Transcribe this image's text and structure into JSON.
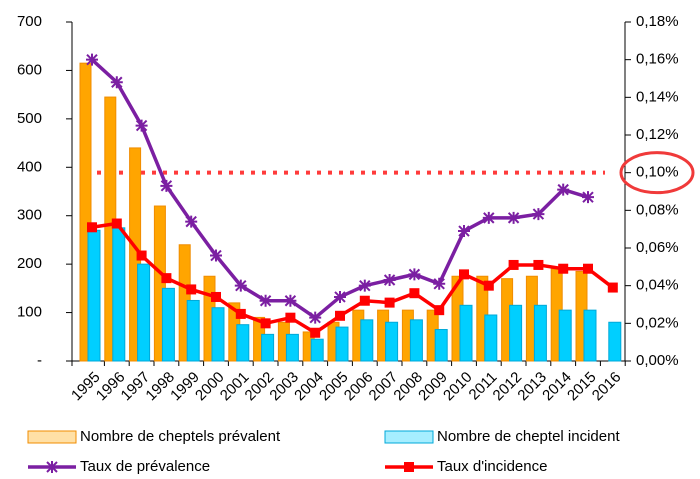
{
  "chart_data": {
    "type": "bar",
    "categories": [
      "1995",
      "1996",
      "1997",
      "1998",
      "1999",
      "2000",
      "2001",
      "2002",
      "2003",
      "2004",
      "2005",
      "2006",
      "2007",
      "2008",
      "2009",
      "2010",
      "2011",
      "2012",
      "2013",
      "2014",
      "2015",
      "2016"
    ],
    "series": [
      {
        "name": "Nombre de cheptels prévalent",
        "type": "bar",
        "color": "#ffa500",
        "values": [
          615,
          545,
          440,
          320,
          240,
          175,
          120,
          90,
          80,
          60,
          80,
          105,
          105,
          105,
          105,
          175,
          175,
          170,
          175,
          190,
          185,
          null
        ]
      },
      {
        "name": "Nombre de cheptel incident",
        "type": "bar",
        "color": "#00cfff",
        "values": [
          270,
          275,
          200,
          150,
          125,
          110,
          75,
          55,
          55,
          45,
          70,
          85,
          80,
          85,
          65,
          115,
          95,
          115,
          115,
          105,
          105,
          80
        ]
      },
      {
        "name": "Taux de prévalence",
        "type": "line",
        "axis": "y2",
        "color": "#7b1fa2",
        "values": [
          0.16,
          0.148,
          0.125,
          0.093,
          0.074,
          0.056,
          0.04,
          0.032,
          0.032,
          0.023,
          0.034,
          0.04,
          0.043,
          0.046,
          0.041,
          0.069,
          0.076,
          0.076,
          0.078,
          0.091,
          0.087,
          null
        ]
      },
      {
        "name": "Taux d'incidence",
        "type": "line",
        "axis": "y2",
        "color": "#ff0000",
        "values": [
          0.071,
          0.073,
          0.056,
          0.044,
          0.038,
          0.034,
          0.025,
          0.02,
          0.023,
          0.015,
          0.024,
          0.032,
          0.031,
          0.036,
          0.027,
          0.046,
          0.04,
          0.051,
          0.051,
          0.049,
          0.049,
          0.039
        ]
      }
    ],
    "ylim": [
      0,
      700
    ],
    "yticks": [
      {
        "value": 0,
        "label": "-"
      },
      100,
      200,
      300,
      400,
      500,
      600,
      700
    ],
    "y2lim": [
      0,
      0.18
    ],
    "y2ticks": [
      {
        "value": 0,
        "label": "0,00%"
      },
      {
        "value": 0.02,
        "label": "0,02%"
      },
      {
        "value": 0.04,
        "label": "0,04%"
      },
      {
        "value": 0.06,
        "label": "0,06%"
      },
      {
        "value": 0.08,
        "label": "0,08%"
      },
      {
        "value": 0.1,
        "label": "0,10%"
      },
      {
        "value": 0.12,
        "label": "0,12%"
      },
      {
        "value": 0.14,
        "label": "0,14%"
      },
      {
        "value": 0.16,
        "label": "0,16%"
      },
      {
        "value": 0.18,
        "label": "0,18%"
      }
    ],
    "reference_line": {
      "value": 0.1,
      "axis": "y2",
      "color": "#ff3b3b"
    },
    "grid": false
  }
}
